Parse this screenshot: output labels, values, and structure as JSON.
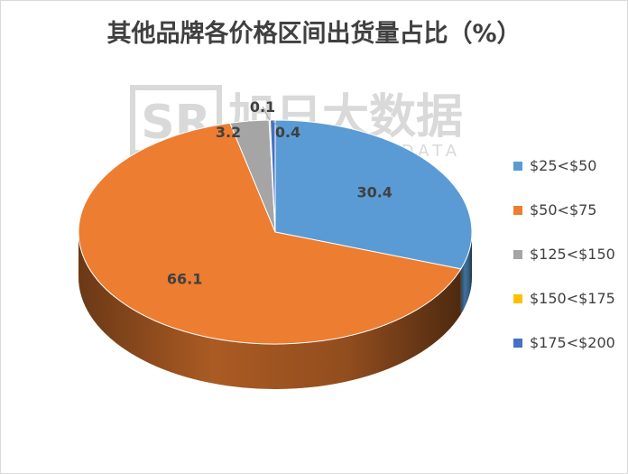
{
  "chart_data": {
    "type": "pie",
    "title": "其他品牌各价格区间出货量占比（%）",
    "categories": [
      "$25<$50",
      "$50<$75",
      "$125<$150",
      "$150<$175",
      "$175<$200"
    ],
    "values": [
      30.4,
      66.1,
      3.2,
      0.1,
      0.4
    ],
    "data_labels": [
      "30.4",
      "66.1",
      "3.2",
      "0.1",
      "0.4"
    ],
    "colors": [
      "#5B9BD5",
      "#ED7D31",
      "#A5A5A5",
      "#FFC000",
      "#4472C4"
    ],
    "legend_position": "right",
    "style": "3d"
  },
  "watermark": {
    "logo_text": "SR",
    "name": "旭日大数据",
    "subtitle": "SUNRISE BIG DATA"
  }
}
